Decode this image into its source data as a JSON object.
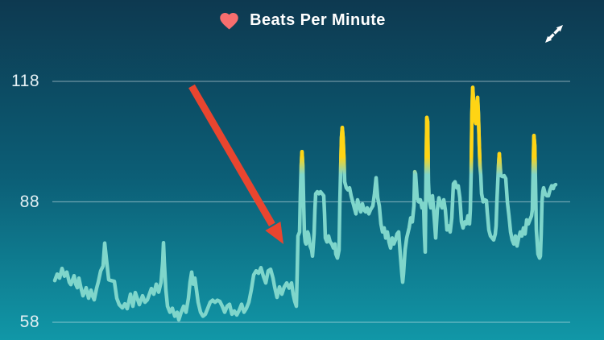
{
  "header": {
    "title": "Beats Per Minute",
    "heart_icon": "heart",
    "expand_icon": "expand-diagonal-arrows"
  },
  "colors": {
    "background_top": "#0D3950",
    "background_mid": "#0C5E76",
    "background_bottom": "#1197A7",
    "line": "#7FD6CB",
    "peak_highlight": "#FFD414",
    "heart": "#F76E6E",
    "arrow": "#E9452F",
    "grid": "rgba(223,240,245,0.45)",
    "tick_text": "#E3EFF3",
    "title_text": "#FFFFFF"
  },
  "chart_data": {
    "type": "line",
    "title": "Beats Per Minute",
    "unit": "bpm",
    "ytick_labels": [
      "118",
      "88",
      "58"
    ],
    "yticks": [
      118,
      88,
      58
    ],
    "ylim": [
      58,
      118
    ],
    "grid": "horizontal",
    "legend": "none",
    "high_zone_threshold_bpm": 97,
    "annotation": {
      "type": "arrow",
      "color": "#E9452F",
      "from": [
        238,
        107
      ],
      "to": [
        352,
        303
      ],
      "meaning": "points at sudden heart-rate jump"
    },
    "series": [
      {
        "name": "heart_rate_bpm",
        "points": [
          [
            68,
            68.4
          ],
          [
            71,
            70
          ],
          [
            74,
            69
          ],
          [
            77,
            71.4
          ],
          [
            80,
            69.5
          ],
          [
            83,
            70.5
          ],
          [
            86,
            68
          ],
          [
            88,
            67.4
          ],
          [
            90,
            68.5
          ],
          [
            92,
            69.6
          ],
          [
            94,
            67.5
          ],
          [
            96,
            66.6
          ],
          [
            98,
            69
          ],
          [
            100,
            67
          ],
          [
            103,
            64.6
          ],
          [
            105,
            65.5
          ],
          [
            107,
            66.6
          ],
          [
            110,
            64
          ],
          [
            113,
            66
          ],
          [
            115,
            64.5
          ],
          [
            117,
            63.6
          ],
          [
            120,
            66.5
          ],
          [
            122,
            68
          ],
          [
            125,
            70.8
          ],
          [
            128,
            72
          ],
          [
            130,
            77.7
          ],
          [
            132,
            74
          ],
          [
            135,
            68.6
          ],
          [
            138,
            68.4
          ],
          [
            142,
            68.2
          ],
          [
            145,
            64
          ],
          [
            148,
            62.4
          ],
          [
            152,
            61.6
          ],
          [
            155,
            62.6
          ],
          [
            158,
            61.4
          ],
          [
            162,
            65
          ],
          [
            165,
            62
          ],
          [
            168,
            65.4
          ],
          [
            173,
            62.4
          ],
          [
            177,
            64.6
          ],
          [
            180,
            63
          ],
          [
            183,
            63.6
          ],
          [
            188,
            66.4
          ],
          [
            191,
            65
          ],
          [
            194,
            67.5
          ],
          [
            197,
            65.5
          ],
          [
            200,
            68
          ],
          [
            202,
            73
          ],
          [
            203,
            77.8
          ],
          [
            204,
            73
          ],
          [
            206,
            66
          ],
          [
            208,
            62
          ],
          [
            211,
            60.5
          ],
          [
            214,
            61.5
          ],
          [
            217,
            59.5
          ],
          [
            220,
            60.5
          ],
          [
            222,
            58.6
          ],
          [
            225,
            60.5
          ],
          [
            228,
            62
          ],
          [
            231,
            60.5
          ],
          [
            234,
            64
          ],
          [
            236,
            68
          ],
          [
            238,
            70.5
          ],
          [
            240,
            67.5
          ],
          [
            242,
            69
          ],
          [
            244,
            66
          ],
          [
            246,
            63
          ],
          [
            249,
            60.5
          ],
          [
            252,
            59.5
          ],
          [
            255,
            60
          ],
          [
            258,
            61.5
          ],
          [
            261,
            63
          ],
          [
            264,
            63.5
          ],
          [
            267,
            63
          ],
          [
            270,
            63.5
          ],
          [
            273,
            63.2
          ],
          [
            276,
            62
          ],
          [
            279,
            60.5
          ],
          [
            282,
            62
          ],
          [
            285,
            62.5
          ],
          [
            288,
            60
          ],
          [
            291,
            60.8
          ],
          [
            294,
            59.8
          ],
          [
            297,
            61
          ],
          [
            300,
            62.5
          ],
          [
            303,
            60.5
          ],
          [
            306,
            61.5
          ],
          [
            309,
            63
          ],
          [
            312,
            66
          ],
          [
            315,
            69.8
          ],
          [
            318,
            70.8
          ],
          [
            321,
            70.2
          ],
          [
            324,
            71.6
          ],
          [
            327,
            69.5
          ],
          [
            330,
            67.8
          ],
          [
            333,
            70.8
          ],
          [
            336,
            71.2
          ],
          [
            339,
            69
          ],
          [
            341,
            66.8
          ],
          [
            344,
            64.2
          ],
          [
            347,
            66.8
          ],
          [
            350,
            65
          ],
          [
            353,
            66.8
          ],
          [
            356,
            67.8
          ],
          [
            359,
            66.5
          ],
          [
            362,
            67.8
          ],
          [
            364,
            65
          ],
          [
            366,
            63.2
          ],
          [
            368,
            62
          ],
          [
            369,
            70
          ],
          [
            370,
            79.5
          ],
          [
            372,
            80.5
          ],
          [
            373,
            90
          ],
          [
            374,
            97
          ],
          [
            375,
            100.5
          ],
          [
            376,
            97
          ],
          [
            377,
            88
          ],
          [
            378,
            80
          ],
          [
            379,
            78
          ],
          [
            380,
            77.5
          ],
          [
            382,
            80.5
          ],
          [
            383,
            80
          ],
          [
            385,
            77
          ],
          [
            386,
            76.5
          ],
          [
            387,
            76
          ],
          [
            388,
            74.5
          ],
          [
            390,
            80
          ],
          [
            391,
            86
          ],
          [
            392,
            90
          ],
          [
            394,
            90.5
          ],
          [
            396,
            90
          ],
          [
            398,
            90.5
          ],
          [
            400,
            90
          ],
          [
            402,
            89.5
          ],
          [
            403,
            85
          ],
          [
            404,
            79
          ],
          [
            406,
            78
          ],
          [
            408,
            79.5
          ],
          [
            410,
            78
          ],
          [
            412,
            77.5
          ],
          [
            414,
            76.5
          ],
          [
            416,
            77.5
          ],
          [
            417,
            75
          ],
          [
            419,
            74
          ],
          [
            421,
            76
          ],
          [
            422,
            88
          ],
          [
            424,
            104
          ],
          [
            425,
            106.5
          ],
          [
            426,
            104
          ],
          [
            427,
            99
          ],
          [
            428,
            93
          ],
          [
            430,
            91.5
          ],
          [
            432,
            91
          ],
          [
            434,
            91.5
          ],
          [
            436,
            89.5
          ],
          [
            438,
            88
          ],
          [
            440,
            86.5
          ],
          [
            442,
            85
          ],
          [
            444,
            88.5
          ],
          [
            446,
            87
          ],
          [
            448,
            85.5
          ],
          [
            450,
            87.5
          ],
          [
            452,
            86
          ],
          [
            454,
            85.5
          ],
          [
            456,
            86.5
          ],
          [
            458,
            85
          ],
          [
            460,
            86
          ],
          [
            463,
            87
          ],
          [
            465,
            90
          ],
          [
            467,
            94
          ],
          [
            469,
            89
          ],
          [
            471,
            87
          ],
          [
            473,
            82.5
          ],
          [
            475,
            80.5
          ],
          [
            477,
            81.5
          ],
          [
            479,
            79
          ],
          [
            481,
            80.5
          ],
          [
            483,
            78
          ],
          [
            485,
            76.5
          ],
          [
            487,
            79
          ],
          [
            489,
            77.5
          ],
          [
            491,
            78.5
          ],
          [
            493,
            80
          ],
          [
            495,
            80.5
          ],
          [
            497,
            75
          ],
          [
            499,
            70
          ],
          [
            500,
            68
          ],
          [
            501,
            70
          ],
          [
            503,
            76
          ],
          [
            505,
            79
          ],
          [
            508,
            81.5
          ],
          [
            510,
            84
          ],
          [
            512,
            83
          ],
          [
            514,
            87
          ],
          [
            515,
            95.5
          ],
          [
            516,
            95
          ],
          [
            518,
            89
          ],
          [
            520,
            88
          ],
          [
            522,
            88.5
          ],
          [
            524,
            86.5
          ],
          [
            526,
            87.5
          ],
          [
            527,
            80
          ],
          [
            528,
            75.5
          ],
          [
            529,
            95
          ],
          [
            530,
            109
          ],
          [
            531,
            108
          ],
          [
            532,
            93
          ],
          [
            533,
            88.5
          ],
          [
            535,
            86.5
          ],
          [
            537,
            89.5
          ],
          [
            539,
            84.5
          ],
          [
            541,
            79
          ],
          [
            543,
            86
          ],
          [
            545,
            89
          ],
          [
            547,
            87.5
          ],
          [
            549,
            86.5
          ],
          [
            551,
            88.5
          ],
          [
            553,
            86
          ],
          [
            555,
            81
          ],
          [
            557,
            82
          ],
          [
            559,
            80.5
          ],
          [
            561,
            84
          ],
          [
            563,
            92.5
          ],
          [
            565,
            93
          ],
          [
            567,
            91.5
          ],
          [
            569,
            92
          ],
          [
            571,
            89
          ],
          [
            573,
            83
          ],
          [
            575,
            81.5
          ],
          [
            577,
            83
          ],
          [
            579,
            82.5
          ],
          [
            581,
            84.5
          ],
          [
            583,
            82.5
          ],
          [
            584,
            86
          ],
          [
            585,
            95
          ],
          [
            586,
            110
          ],
          [
            587,
            116.5
          ],
          [
            588,
            113
          ],
          [
            589,
            109
          ],
          [
            591,
            107.5
          ],
          [
            592,
            112
          ],
          [
            593,
            114
          ],
          [
            594,
            110
          ],
          [
            595,
            103
          ],
          [
            596,
            97
          ],
          [
            597,
            94.5
          ],
          [
            598,
            90
          ],
          [
            600,
            88
          ],
          [
            602,
            88.5
          ],
          [
            604,
            88.3
          ],
          [
            605,
            85.5
          ],
          [
            607,
            81
          ],
          [
            609,
            79.5
          ],
          [
            611,
            79
          ],
          [
            613,
            78.5
          ],
          [
            615,
            80
          ],
          [
            616,
            82
          ],
          [
            617,
            88
          ],
          [
            619,
            97
          ],
          [
            620,
            100
          ],
          [
            621,
            97
          ],
          [
            622,
            94.5
          ],
          [
            624,
            94.3
          ],
          [
            626,
            94.5
          ],
          [
            628,
            93.8
          ],
          [
            630,
            88
          ],
          [
            632,
            84.5
          ],
          [
            634,
            80.5
          ],
          [
            636,
            78.5
          ],
          [
            638,
            77.5
          ],
          [
            640,
            79.5
          ],
          [
            642,
            77
          ],
          [
            644,
            79
          ],
          [
            646,
            80.5
          ],
          [
            648,
            79.5
          ],
          [
            650,
            81.5
          ],
          [
            652,
            80
          ],
          [
            654,
            83.5
          ],
          [
            656,
            82.5
          ],
          [
            658,
            83.5
          ],
          [
            660,
            84.5
          ],
          [
            661,
            86
          ],
          [
            662,
            96
          ],
          [
            663,
            104.5
          ],
          [
            664,
            102
          ],
          [
            665,
            92
          ],
          [
            666,
            81
          ],
          [
            668,
            75
          ],
          [
            670,
            74
          ],
          [
            671,
            74.5
          ],
          [
            672,
            80
          ],
          [
            673,
            88
          ],
          [
            674,
            90.5
          ],
          [
            675,
            91.5
          ],
          [
            677,
            90
          ],
          [
            679,
            89.5
          ],
          [
            681,
            89.5
          ],
          [
            683,
            91
          ],
          [
            685,
            92
          ],
          [
            687,
            91.3
          ],
          [
            688,
            92
          ],
          [
            690,
            92.3
          ]
        ]
      }
    ]
  }
}
